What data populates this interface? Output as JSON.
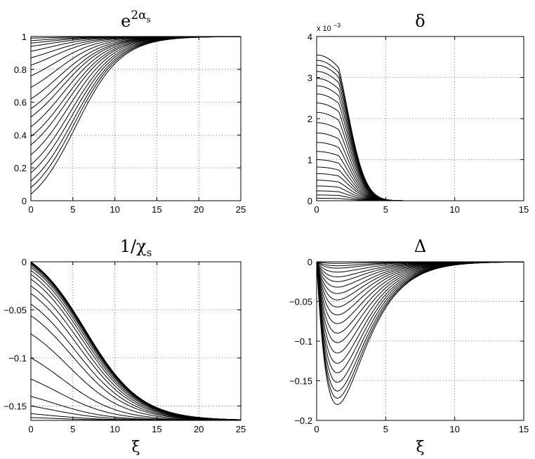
{
  "chart_data": [
    {
      "id": "tl",
      "type": "line",
      "title": {
        "base": "e",
        "sup_main": "2α",
        "sup_sub": "s"
      },
      "xlabel": "",
      "ylabel": "",
      "xlim": [
        0,
        25
      ],
      "ylim": [
        0,
        1
      ],
      "xticks": [
        0,
        5,
        10,
        15,
        20,
        25
      ],
      "yticks": [
        0,
        0.2,
        0.4,
        0.6,
        0.8,
        1
      ],
      "ytick_labels": [
        "0",
        "0.2",
        "0.4",
        "0.6",
        "0.8",
        "1"
      ],
      "grid": true,
      "family": {
        "count": 21,
        "kind": "sigmoid_to_one",
        "y_at_zero": [
          0.99,
          0.975,
          0.96,
          0.94,
          0.91,
          0.87,
          0.825,
          0.76,
          0.69,
          0.62,
          0.56,
          0.51,
          0.45,
          0.39,
          0.34,
          0.28,
          0.22,
          0.17,
          0.12,
          0.08,
          0.04
        ],
        "half_rise_x": 5.5,
        "width": 2.7
      }
    },
    {
      "id": "tr",
      "type": "line",
      "title": {
        "base": "δ"
      },
      "xlabel": "",
      "ylabel": "",
      "xlim": [
        0,
        15
      ],
      "ylim": [
        0,
        4
      ],
      "xticks": [
        0,
        5,
        10,
        15
      ],
      "yticks": [
        0,
        1,
        2,
        3,
        4
      ],
      "ytick_labels": [
        "0",
        "1",
        "2",
        "3",
        "4"
      ],
      "y_exponent_label": {
        "base": "x 10",
        "exp": "−3"
      },
      "grid": true,
      "family": {
        "count": 21,
        "kind": "plateau_decay",
        "peak_values": [
          3.55,
          3.42,
          3.3,
          3.15,
          2.98,
          2.8,
          2.6,
          2.38,
          2.15,
          1.9,
          1.65,
          1.42,
          1.2,
          1.0,
          0.82,
          0.66,
          0.5,
          0.36,
          0.24,
          0.14,
          0.06
        ],
        "plateau_x": 1.6,
        "decay_scale": 1.45
      }
    },
    {
      "id": "bl",
      "type": "line",
      "title": {
        "base": "1/χ",
        "sub": "s"
      },
      "xlabel": "ξ",
      "ylabel": "",
      "xlim": [
        0,
        25
      ],
      "ylim": [
        -0.165,
        0
      ],
      "xticks": [
        0,
        5,
        10,
        15,
        20,
        25
      ],
      "yticks": [
        0,
        -0.05,
        -0.1,
        -0.15
      ],
      "ytick_labels": [
        "0",
        "−0.05",
        "−0.1",
        "−0.15"
      ],
      "grid": true,
      "family": {
        "count": 21,
        "kind": "sigmoid_to_floor",
        "y_floor": -0.165,
        "y_at_zero": [
          -0.162,
          -0.158,
          -0.15,
          -0.14,
          -0.122,
          -0.1,
          -0.075,
          -0.056,
          -0.044,
          -0.033,
          -0.025,
          -0.018,
          -0.013,
          -0.009,
          -0.006,
          -0.004,
          -0.0025,
          -0.0015,
          -0.0008,
          -0.0004,
          -0.0001
        ],
        "half_drop_x": 6.5,
        "width": 3.3
      }
    },
    {
      "id": "br",
      "type": "line",
      "title": {
        "base": "Δ"
      },
      "xlabel": "ξ",
      "ylabel": "",
      "xlim": [
        0,
        15
      ],
      "ylim": [
        -0.2,
        0
      ],
      "xticks": [
        0,
        5,
        10,
        15
      ],
      "yticks": [
        0,
        -0.05,
        -0.1,
        -0.15,
        -0.2
      ],
      "ytick_labels": [
        "0",
        "−0.05",
        "−0.1",
        "−0.15",
        "−0.2"
      ],
      "grid": true,
      "family": {
        "count": 21,
        "kind": "dip_recover",
        "min_values": [
          -0.18,
          -0.172,
          -0.163,
          -0.152,
          -0.14,
          -0.128,
          -0.115,
          -0.102,
          -0.09,
          -0.078,
          -0.067,
          -0.057,
          -0.048,
          -0.04,
          -0.032,
          -0.025,
          -0.019,
          -0.013,
          -0.008,
          -0.005,
          -0.002
        ],
        "min_x": 1.5
      }
    }
  ]
}
